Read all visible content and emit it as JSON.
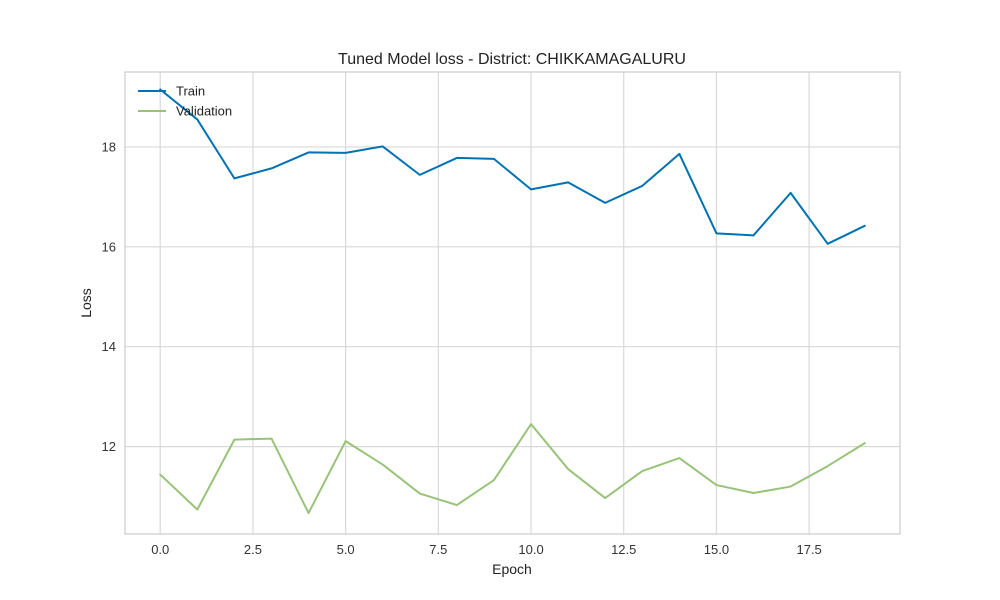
{
  "chart_data": {
    "type": "line",
    "title": "Tuned Model loss - District: CHIKKAMAGALURU",
    "xlabel": "Epoch",
    "ylabel": "Loss",
    "xlim": [
      -0.95,
      19.95
    ],
    "ylim": [
      10.25,
      19.5
    ],
    "xticks": [
      0.0,
      2.5,
      5.0,
      7.5,
      10.0,
      12.5,
      15.0,
      17.5
    ],
    "xtick_labels": [
      "0.0",
      "2.5",
      "5.0",
      "7.5",
      "10.0",
      "12.5",
      "15.0",
      "17.5"
    ],
    "yticks": [
      12,
      14,
      16,
      18
    ],
    "ytick_labels": [
      "12",
      "14",
      "16",
      "18"
    ],
    "grid": true,
    "legend_position": "top-left",
    "x": [
      0,
      1,
      2,
      3,
      4,
      5,
      6,
      7,
      8,
      9,
      10,
      11,
      12,
      13,
      14,
      15,
      16,
      17,
      18,
      19
    ],
    "series": [
      {
        "name": "Train",
        "color": "#0072b2",
        "values": [
          19.15,
          18.55,
          17.37,
          17.57,
          17.89,
          17.88,
          18.01,
          17.44,
          17.78,
          17.76,
          17.15,
          17.29,
          16.88,
          17.22,
          17.86,
          16.27,
          16.23,
          17.08,
          16.06,
          16.42
        ]
      },
      {
        "name": "Validation",
        "color": "#98c379",
        "values": [
          11.44,
          10.74,
          12.14,
          12.16,
          10.67,
          12.11,
          11.64,
          11.06,
          10.83,
          11.33,
          12.45,
          11.55,
          10.97,
          11.51,
          11.77,
          11.23,
          11.07,
          11.2,
          11.61,
          12.07
        ]
      }
    ]
  }
}
